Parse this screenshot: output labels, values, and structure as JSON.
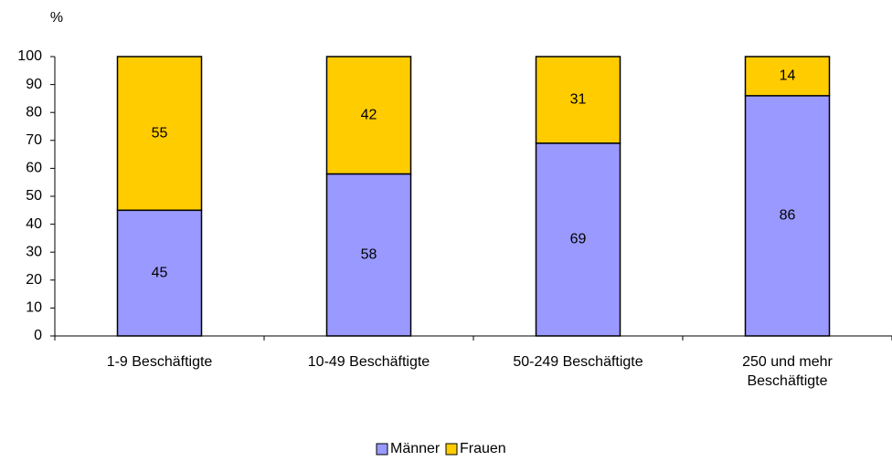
{
  "chart_data": {
    "type": "stacked_bar",
    "y_label": "%",
    "categories": [
      "1-9 Beschäftigte",
      "10-49 Beschäftigte",
      "50-249 Beschäftigte",
      "250 und mehr Beschäftigte"
    ],
    "series": [
      {
        "name": "Männer",
        "color": "#9999ff",
        "values": [
          45,
          58,
          69,
          86
        ]
      },
      {
        "name": "Frauen",
        "color": "#ffcc00",
        "values": [
          55,
          42,
          31,
          14
        ]
      }
    ],
    "ylim": [
      0,
      100
    ],
    "yticks": [
      0,
      10,
      20,
      30,
      40,
      50,
      60,
      70,
      80,
      90,
      100
    ],
    "legend": "bottom"
  }
}
